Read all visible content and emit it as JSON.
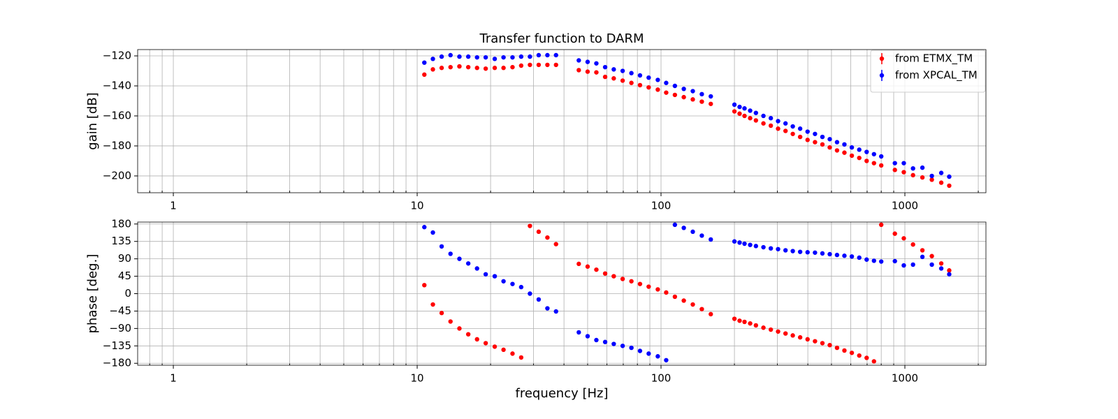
{
  "chart_data": [
    {
      "type": "scatter",
      "title": "Transfer function to DARM",
      "ylabel": "gain [dB]",
      "xscale": "log",
      "grid": true,
      "legend": "upper right",
      "x": [
        10.7,
        11.6,
        12.6,
        13.7,
        14.9,
        16.2,
        17.6,
        19.1,
        20.8,
        22.6,
        24.6,
        26.7,
        29.0,
        31.5,
        34.2,
        37.1,
        46,
        50,
        54.3,
        59,
        64,
        69.6,
        75.6,
        82,
        89,
        97,
        105,
        114,
        124,
        135,
        147,
        160,
        200,
        210,
        220,
        232,
        245,
        263,
        282,
        302,
        324,
        347,
        372,
        399,
        428,
        459,
        492,
        527,
        565,
        606,
        650,
        697,
        747,
        800,
        910,
        990,
        1080,
        1180,
        1290,
        1410,
        1520
      ],
      "series": [
        {
          "name": "from ETMX_TM",
          "color": "#ff0000",
          "values": [
            -132.5,
            -129,
            -128,
            -127.5,
            -127,
            -127.5,
            -128,
            -128.5,
            -128,
            -128,
            -127.5,
            -126.5,
            -126,
            -126,
            -126,
            -126,
            -129.5,
            -130.5,
            -131,
            -134,
            -135,
            -136.5,
            -138,
            -139.5,
            -141,
            -142.5,
            -144.5,
            -146,
            -147.5,
            -149,
            -150.5,
            -152,
            -157,
            -158.5,
            -160,
            -161.5,
            -163,
            -165,
            -166.5,
            -168.5,
            -170,
            -172,
            -174,
            -176,
            -177.5,
            -179,
            -181,
            -183,
            -184.5,
            -186.5,
            -188,
            -190,
            -191.5,
            -193,
            -196,
            -197.5,
            -199.5,
            -201,
            -202.5,
            -204.5,
            -206.5
          ]
        },
        {
          "name": "from XPCAL_TM",
          "color": "#0000ff",
          "values": [
            -124.5,
            -122,
            -120.5,
            -119.5,
            -120.5,
            -120.5,
            -121,
            -121,
            -122,
            -121,
            -121,
            -120.5,
            -120.5,
            -119.5,
            -119.5,
            -119.5,
            -123,
            -124,
            -125,
            -127.5,
            -129,
            -130,
            -131.5,
            -133,
            -134.5,
            -136,
            -138,
            -140,
            -142,
            -143.5,
            -145.5,
            -147,
            -152.5,
            -154,
            -155,
            -156.5,
            -158,
            -160,
            -161.5,
            -163.5,
            -165,
            -167,
            -168.5,
            -170.5,
            -172,
            -174,
            -175.5,
            -177.5,
            -179,
            -181,
            -182.5,
            -184,
            -185.5,
            -187,
            -191.5,
            -191.5,
            -195,
            -194.5,
            -200,
            -198,
            -200.5
          ]
        }
      ],
      "xlim": [
        0.714,
        2150
      ],
      "xticks": [
        1,
        10,
        100,
        1000
      ],
      "xminorticks": [
        0.8,
        0.9,
        2,
        3,
        4,
        5,
        6,
        7,
        8,
        9,
        20,
        30,
        40,
        50,
        60,
        70,
        80,
        90,
        200,
        300,
        400,
        500,
        600,
        700,
        800,
        900,
        2000
      ],
      "ylim": [
        -211.2,
        -115.8
      ],
      "yticks": [
        {
          "value": -120,
          "label": "−120"
        },
        {
          "value": -140,
          "label": "−140"
        },
        {
          "value": -160,
          "label": "−160"
        },
        {
          "value": -180,
          "label": "−180"
        },
        {
          "value": -200,
          "label": "−200"
        }
      ]
    },
    {
      "type": "scatter",
      "xlabel": "frequency [Hz]",
      "ylabel": "phase [deg.]",
      "xscale": "log",
      "grid": true,
      "x": [
        10.7,
        11.6,
        12.6,
        13.7,
        14.9,
        16.2,
        17.6,
        19.1,
        20.8,
        22.6,
        24.6,
        26.7,
        29.0,
        31.5,
        34.2,
        37.1,
        46,
        50,
        54.3,
        59,
        64,
        69.6,
        75.6,
        82,
        89,
        97,
        105,
        114,
        124,
        135,
        147,
        160,
        200,
        210,
        220,
        232,
        245,
        263,
        282,
        302,
        324,
        347,
        372,
        399,
        428,
        459,
        492,
        527,
        565,
        606,
        650,
        697,
        747,
        800,
        910,
        990,
        1080,
        1180,
        1290,
        1410,
        1520
      ],
      "series": [
        {
          "color": "#ff0000",
          "values": [
            22,
            -28,
            -50,
            -72,
            -90,
            -105,
            -118,
            -128,
            -137,
            -145,
            -155,
            -165,
            175,
            160,
            145,
            128,
            77,
            70,
            62,
            52,
            45,
            38,
            32,
            25,
            18,
            11,
            3,
            -8,
            -18,
            -28,
            -40,
            -53,
            -65,
            -70,
            -73,
            -77,
            -82,
            -88,
            -93,
            -98,
            -103,
            -108,
            -113,
            -118,
            -123,
            -128,
            -133,
            -140,
            -147,
            -153,
            -160,
            -166,
            -175,
            178,
            155,
            143,
            127,
            112,
            97,
            78,
            60
          ]
        },
        {
          "color": "#0000ff",
          "values": [
            172,
            158,
            122,
            103,
            90,
            78,
            65,
            50,
            45,
            32,
            25,
            17,
            0,
            -15,
            -38,
            -46,
            -100,
            -110,
            -120,
            -125,
            -130,
            -135,
            -140,
            -148,
            -155,
            -162,
            -172,
            178,
            170,
            160,
            150,
            140,
            135,
            132,
            129,
            126,
            123,
            120,
            117,
            115,
            112,
            110,
            108,
            107,
            106,
            104,
            102,
            100,
            98,
            96,
            93,
            88,
            85,
            83,
            84,
            73,
            75,
            95,
            75,
            65,
            50
          ]
        }
      ],
      "xlim": [
        0.714,
        2150
      ],
      "xticks": [
        1,
        10,
        100,
        1000
      ],
      "xminorticks": [
        0.8,
        0.9,
        2,
        3,
        4,
        5,
        6,
        7,
        8,
        9,
        20,
        30,
        40,
        50,
        60,
        70,
        80,
        90,
        200,
        300,
        400,
        500,
        600,
        700,
        800,
        900,
        2000
      ],
      "ylim": [
        -185,
        185
      ],
      "yticks": [
        180,
        135,
        90,
        45,
        0,
        {
          "value": -45,
          "label": "−45"
        },
        {
          "value": -90,
          "label": "−90"
        },
        {
          "value": -135,
          "label": "−135"
        },
        {
          "value": -180,
          "label": "−180"
        }
      ]
    }
  ]
}
